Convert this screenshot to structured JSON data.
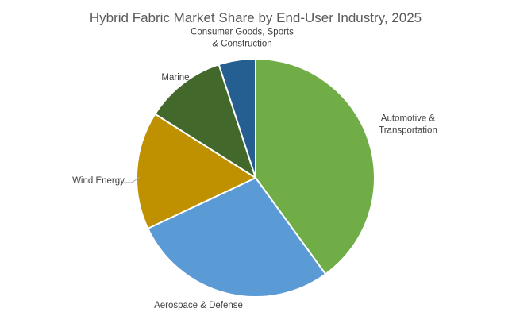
{
  "chart_data": {
    "type": "pie",
    "title": "Hybrid Fabric Market Share by End-User Industry, 2025",
    "categories": [
      "Automotive & Transportation",
      "Aerospace & Defense",
      "Wind Energy",
      "Marine",
      "Consumer Goods, Sports & Construction"
    ],
    "label_lines": [
      [
        "Automotive &",
        "Transportation"
      ],
      [
        "Aerospace & Defense"
      ],
      [
        "Wind Energy"
      ],
      [
        "Marine"
      ],
      [
        "Consumer Goods, Sports",
        "& Construction"
      ]
    ],
    "values": [
      40,
      28,
      16,
      11,
      5
    ],
    "colors": [
      "#70AD47",
      "#5B9BD5",
      "#BF9000",
      "#43682B",
      "#255E91"
    ],
    "start_angle_deg": 0,
    "direction": "clockwise",
    "legend": "none",
    "data_labels": "outside"
  }
}
